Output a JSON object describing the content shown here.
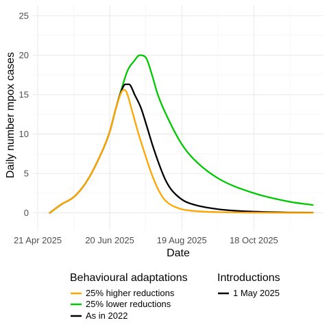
{
  "chart_data": {
    "type": "line",
    "xlabel": "Date",
    "ylabel": "Daily number mpox cases",
    "x_ticks": [
      "21 Apr 2025",
      "20 Jun 2025",
      "19 Aug 2025",
      "18 Oct 2025"
    ],
    "y_ticks": [
      "0",
      "5",
      "10",
      "15",
      "20",
      "25"
    ],
    "xlim": [
      "2025-04-17",
      "2025-12-15"
    ],
    "ylim": [
      -2.3,
      26.3
    ],
    "grid": true,
    "legend_position": "bottom",
    "legends": [
      {
        "title": "Behavioural adaptations",
        "entries": [
          "25% higher reductions",
          "25% lower reductions",
          "As in 2022"
        ]
      },
      {
        "title": "Introductions",
        "entries": [
          "1 May 2025"
        ]
      }
    ],
    "series": [
      {
        "name": "25% higher reductions",
        "color": "#FFA500",
        "x": [
          "2025-05-01",
          "2025-05-11",
          "2025-05-21",
          "2025-05-31",
          "2025-06-10",
          "2025-06-20",
          "2025-06-25",
          "2025-06-30",
          "2025-07-02",
          "2025-07-04",
          "2025-07-09",
          "2025-07-14",
          "2025-07-19",
          "2025-07-24",
          "2025-07-29",
          "2025-08-03",
          "2025-08-08",
          "2025-08-18",
          "2025-08-28",
          "2025-09-17",
          "2025-10-17",
          "2025-11-16",
          "2025-12-06"
        ],
        "values": [
          0,
          1.1,
          2.0,
          3.8,
          6.6,
          10.3,
          13.2,
          15.4,
          15.6,
          15.3,
          12.7,
          10.0,
          7.6,
          5.3,
          3.4,
          2.0,
          1.2,
          0.5,
          0.25,
          0.1,
          0.03,
          0.01,
          0.01
        ]
      },
      {
        "name": "As in 2022",
        "color": "#000000",
        "x": [
          "2025-05-01",
          "2025-05-11",
          "2025-05-21",
          "2025-05-31",
          "2025-06-10",
          "2025-06-20",
          "2025-06-25",
          "2025-06-30",
          "2025-07-03",
          "2025-07-06",
          "2025-07-11",
          "2025-07-16",
          "2025-07-21",
          "2025-07-26",
          "2025-07-31",
          "2025-08-05",
          "2025-08-10",
          "2025-08-20",
          "2025-08-30",
          "2025-09-19",
          "2025-10-19",
          "2025-11-18",
          "2025-12-06"
        ],
        "values": [
          0,
          1.1,
          2.0,
          3.8,
          6.6,
          10.3,
          13.2,
          15.6,
          16.3,
          16.3,
          14.9,
          13.3,
          10.9,
          8.4,
          6.2,
          4.3,
          3.0,
          1.6,
          1.0,
          0.45,
          0.15,
          0.05,
          0.03
        ]
      },
      {
        "name": "25% lower reductions",
        "color": "#00C800",
        "x": [
          "2025-05-01",
          "2025-05-11",
          "2025-05-21",
          "2025-05-31",
          "2025-06-10",
          "2025-06-20",
          "2025-06-25",
          "2025-06-30",
          "2025-07-05",
          "2025-07-10",
          "2025-07-15",
          "2025-07-20",
          "2025-07-25",
          "2025-07-30",
          "2025-08-09",
          "2025-08-19",
          "2025-08-29",
          "2025-09-18",
          "2025-10-18",
          "2025-11-17",
          "2025-12-06"
        ],
        "values": [
          0,
          1.1,
          2.0,
          3.8,
          6.6,
          10.3,
          13.2,
          15.8,
          18.1,
          19.2,
          20.0,
          19.7,
          17.6,
          15.0,
          11.5,
          8.7,
          6.8,
          4.4,
          2.5,
          1.4,
          1.0
        ]
      }
    ]
  }
}
